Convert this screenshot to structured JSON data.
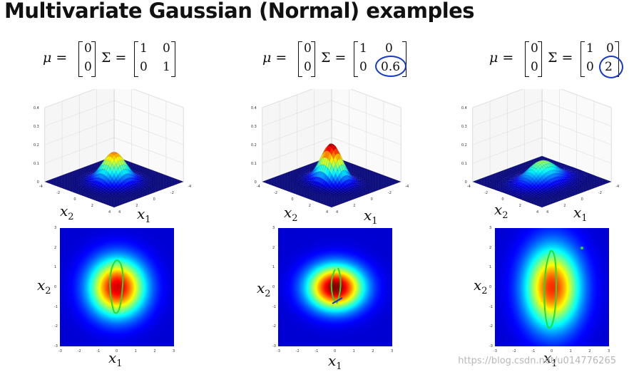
{
  "title": "Multivariate Gaussian (Normal) examples",
  "examples": [
    {
      "mu": [
        "0",
        "0"
      ],
      "sigma": [
        [
          "1",
          "0"
        ],
        [
          "0",
          "1"
        ]
      ],
      "circled": null,
      "var_x2": 1
    },
    {
      "mu": [
        "0",
        "0"
      ],
      "sigma": [
        [
          "1",
          "0"
        ],
        [
          "0",
          "0.6"
        ]
      ],
      "circled": "0.6",
      "var_x2": 0.6
    },
    {
      "mu": [
        "0",
        "0"
      ],
      "sigma": [
        [
          "1",
          "0"
        ],
        [
          "0",
          "2"
        ]
      ],
      "circled": "2",
      "var_x2": 2
    }
  ],
  "labels": {
    "mu": "μ =",
    "sigma": "Σ =",
    "x1": "x",
    "x2": "x",
    "sub1": "1",
    "sub2": "2"
  },
  "z_ticks": [
    "0.4",
    "0.3",
    "0.2",
    "0.1",
    "0"
  ],
  "heat_ticks": [
    "3",
    "2",
    "1",
    "0",
    "-1",
    "-2",
    "-3"
  ],
  "colormap": "jet",
  "annotation_color": "#22dd33",
  "circle_color": "#1638c8",
  "watermark": "https://blog.csdn.net/u014776265"
}
